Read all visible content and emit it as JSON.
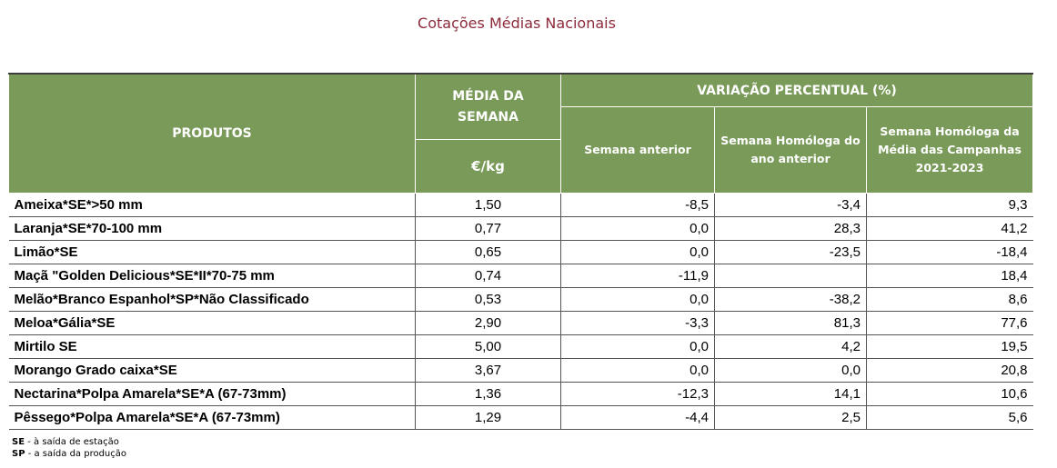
{
  "title": "Cotações Médias Nacionais",
  "headers": {
    "produtos": "PRODUTOS",
    "media_semana": "MÉDIA DA SEMANA",
    "unit": "€/kg",
    "variacao": "VARIAÇÃO PERCENTUAL (%)",
    "semana_anterior": "Semana anterior",
    "semana_homologa": "Semana Homóloga do ano anterior",
    "semana_homologa_media": "Semana Homóloga da Média das Campanhas 2021-2023"
  },
  "rows": [
    {
      "produto": "Ameixa*SE*>50 mm",
      "media": "1,50",
      "sem_ant": "-8,5",
      "hom_ano": "-3,4",
      "hom_media": "9,3"
    },
    {
      "produto": "Laranja*SE*70-100 mm",
      "media": "0,77",
      "sem_ant": "0,0",
      "hom_ano": "28,3",
      "hom_media": "41,2"
    },
    {
      "produto": "Limão*SE",
      "media": "0,65",
      "sem_ant": "0,0",
      "hom_ano": "-23,5",
      "hom_media": "-18,4"
    },
    {
      "produto": "Maçã \"Golden Delicious*SE*II*70-75 mm",
      "media": "0,74",
      "sem_ant": "-11,9",
      "hom_ano": "",
      "hom_media": "18,4"
    },
    {
      "produto": "Melão*Branco Espanhol*SP*Não Classificado",
      "media": "0,53",
      "sem_ant": "0,0",
      "hom_ano": "-38,2",
      "hom_media": "8,6"
    },
    {
      "produto": "Meloa*Gália*SE",
      "media": "2,90",
      "sem_ant": "-3,3",
      "hom_ano": "81,3",
      "hom_media": "77,6"
    },
    {
      "produto": "Mirtilo SE",
      "media": "5,00",
      "sem_ant": "0,0",
      "hom_ano": "4,2",
      "hom_media": "19,5"
    },
    {
      "produto": "Morango Grado caixa*SE",
      "media": "3,67",
      "sem_ant": "0,0",
      "hom_ano": "0,0",
      "hom_media": "20,8"
    },
    {
      "produto": "Nectarina*Polpa Amarela*SE*A (67-73mm)",
      "media": "1,36",
      "sem_ant": "-12,3",
      "hom_ano": "14,1",
      "hom_media": "10,6"
    },
    {
      "produto": "Pêssego*Polpa Amarela*SE*A (67-73mm)",
      "media": "1,29",
      "sem_ant": "-4,4",
      "hom_ano": "2,5",
      "hom_media": "5,6"
    }
  ],
  "notes": [
    {
      "code": "SE",
      "text": " - à saída de estação"
    },
    {
      "code": "SP",
      "text": " - a saída da produção"
    }
  ]
}
